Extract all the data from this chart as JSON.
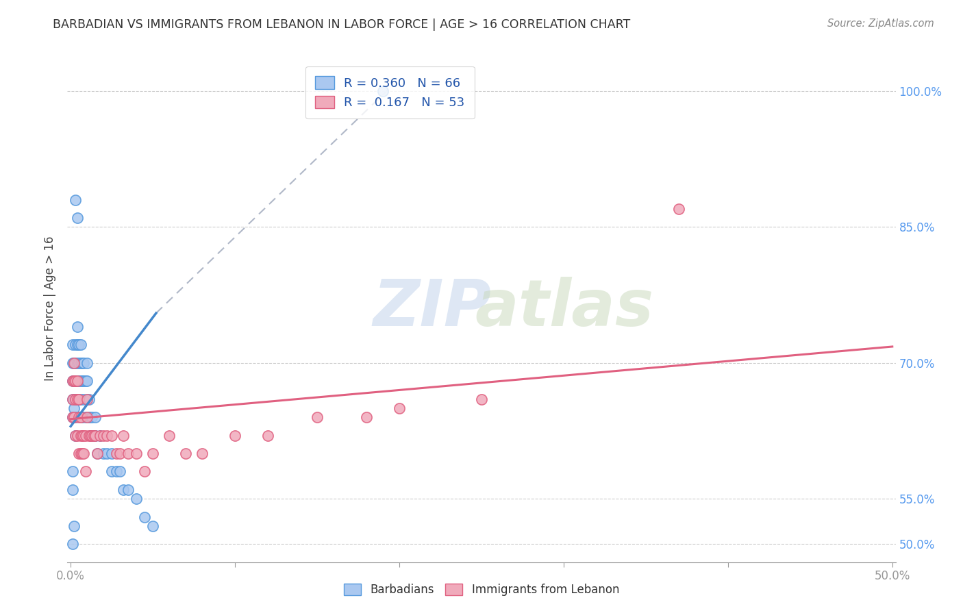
{
  "title": "BARBADIAN VS IMMIGRANTS FROM LEBANON IN LABOR FORCE | AGE > 16 CORRELATION CHART",
  "source": "Source: ZipAtlas.com",
  "ylabel": "In Labor Force | Age > 16",
  "xlim": [
    -0.002,
    0.502
  ],
  "ylim": [
    0.48,
    1.04
  ],
  "ytick_values": [
    0.5,
    0.55,
    0.7,
    0.85,
    1.0
  ],
  "ytick_labels": [
    "50.0%",
    "55.0%",
    "70.0%",
    "85.0%",
    "100.0%"
  ],
  "xtick_values": [
    0.0,
    0.1,
    0.2,
    0.3,
    0.4,
    0.5
  ],
  "xtick_labels": [
    "0.0%",
    "",
    "",
    "",
    "",
    "50.0%"
  ],
  "legend_labels": [
    "Barbadians",
    "Immigrants from Lebanon"
  ],
  "barbadian_fill": "#aac8f0",
  "barbadian_edge": "#5599dd",
  "lebanon_fill": "#f0aabb",
  "lebanon_edge": "#e06080",
  "blue_line_color": "#4488cc",
  "pink_line_color": "#e06080",
  "gray_dash_color": "#b0b8c8",
  "R_barbadian": 0.36,
  "N_barbadian": 66,
  "R_lebanon": 0.167,
  "N_lebanon": 53,
  "bg_color": "#ffffff",
  "grid_color": "#cccccc",
  "tick_color": "#999999",
  "axis_label_color": "#444444",
  "right_tick_color": "#5599ee",
  "title_color": "#333333",
  "source_color": "#888888",
  "legend_text_color": "#2255aa",
  "watermark_zip_color": "#c8d8ee",
  "watermark_atlas_color": "#c8d8bb",
  "barbadian_x": [
    0.001,
    0.001,
    0.001,
    0.001,
    0.001,
    0.002,
    0.002,
    0.002,
    0.002,
    0.003,
    0.003,
    0.003,
    0.003,
    0.003,
    0.003,
    0.004,
    0.004,
    0.004,
    0.004,
    0.005,
    0.005,
    0.005,
    0.005,
    0.006,
    0.006,
    0.006,
    0.006,
    0.007,
    0.007,
    0.007,
    0.008,
    0.008,
    0.008,
    0.009,
    0.009,
    0.01,
    0.01,
    0.01,
    0.011,
    0.011,
    0.012,
    0.012,
    0.013,
    0.014,
    0.015,
    0.015,
    0.016,
    0.018,
    0.02,
    0.022,
    0.025,
    0.025,
    0.028,
    0.03,
    0.032,
    0.035,
    0.04,
    0.045,
    0.05,
    0.001,
    0.001,
    0.002,
    0.001,
    0.003,
    0.004,
    0.19
  ],
  "barbadian_y": [
    0.66,
    0.68,
    0.7,
    0.72,
    0.64,
    0.68,
    0.7,
    0.66,
    0.65,
    0.7,
    0.68,
    0.72,
    0.66,
    0.64,
    0.62,
    0.72,
    0.7,
    0.68,
    0.74,
    0.7,
    0.72,
    0.68,
    0.66,
    0.68,
    0.7,
    0.72,
    0.66,
    0.7,
    0.68,
    0.64,
    0.7,
    0.68,
    0.66,
    0.68,
    0.64,
    0.7,
    0.68,
    0.66,
    0.66,
    0.64,
    0.64,
    0.62,
    0.64,
    0.62,
    0.64,
    0.62,
    0.6,
    0.62,
    0.6,
    0.6,
    0.6,
    0.58,
    0.58,
    0.58,
    0.56,
    0.56,
    0.55,
    0.53,
    0.52,
    0.58,
    0.56,
    0.52,
    0.5,
    0.88,
    0.86,
    1.0
  ],
  "lebanon_x": [
    0.001,
    0.001,
    0.001,
    0.002,
    0.002,
    0.002,
    0.003,
    0.003,
    0.003,
    0.004,
    0.004,
    0.004,
    0.005,
    0.005,
    0.005,
    0.006,
    0.006,
    0.006,
    0.007,
    0.007,
    0.008,
    0.008,
    0.009,
    0.009,
    0.01,
    0.01,
    0.011,
    0.012,
    0.013,
    0.014,
    0.015,
    0.016,
    0.018,
    0.02,
    0.022,
    0.025,
    0.028,
    0.03,
    0.032,
    0.035,
    0.04,
    0.045,
    0.05,
    0.06,
    0.07,
    0.08,
    0.1,
    0.12,
    0.15,
    0.18,
    0.2,
    0.25,
    0.37
  ],
  "lebanon_y": [
    0.68,
    0.66,
    0.64,
    0.7,
    0.68,
    0.64,
    0.68,
    0.66,
    0.62,
    0.68,
    0.66,
    0.62,
    0.66,
    0.64,
    0.6,
    0.64,
    0.62,
    0.6,
    0.62,
    0.6,
    0.62,
    0.6,
    0.62,
    0.58,
    0.66,
    0.64,
    0.62,
    0.62,
    0.62,
    0.62,
    0.62,
    0.6,
    0.62,
    0.62,
    0.62,
    0.62,
    0.6,
    0.6,
    0.62,
    0.6,
    0.6,
    0.58,
    0.6,
    0.62,
    0.6,
    0.6,
    0.62,
    0.62,
    0.64,
    0.64,
    0.65,
    0.66,
    0.87
  ],
  "dashed_line_x": [
    0.052,
    0.195
  ],
  "dashed_line_y": [
    0.755,
    1.005
  ],
  "blue_line_x": [
    0.0,
    0.052
  ],
  "blue_line_y": [
    0.63,
    0.755
  ],
  "pink_line_x": [
    0.0,
    0.5
  ],
  "pink_line_y": [
    0.638,
    0.718
  ]
}
